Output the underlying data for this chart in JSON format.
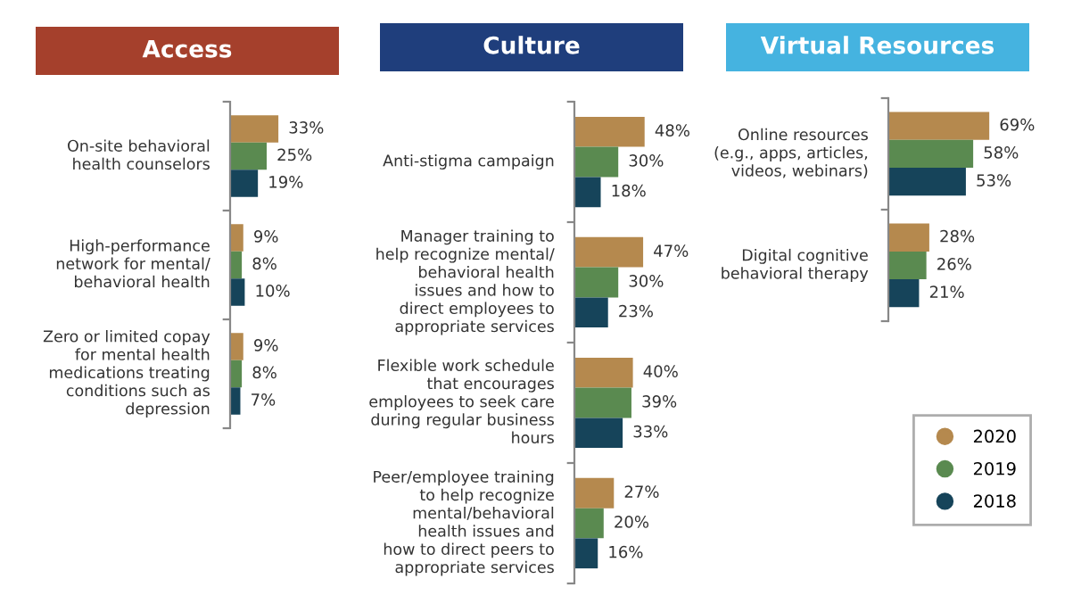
{
  "chart_data": [
    {
      "type": "bar",
      "orientation": "horizontal",
      "title": "Access",
      "categories": [
        "On-site behavioral\nhealth counselors",
        "High-performance\nnetwork for mental/\nbehavioral health",
        "Zero or limited copay\nfor mental health\nmedications treating\nconditions such as\ndepression"
      ],
      "series": [
        {
          "color": "#b5894e",
          "values": [
            33,
            9,
            9
          ],
          "value_labels": [
            "33%",
            "9%",
            "9%"
          ]
        },
        {
          "color": "#5a8a50",
          "values": [
            25,
            8,
            8
          ],
          "value_labels": [
            "25%",
            "8%",
            "8%"
          ]
        },
        {
          "color": "#16445a",
          "values": [
            19,
            10,
            7
          ],
          "value_labels": [
            "19%",
            "10%",
            "7%"
          ]
        }
      ]
    },
    {
      "type": "bar",
      "orientation": "horizontal",
      "title": "Culture",
      "categories": [
        "Anti-stigma campaign",
        "Manager training to\nhelp recognize mental/\nbehavioral health\nissues and how to\ndirect employees to\nappropriate services",
        "Flexible work schedule\nthat encourages\nemployees to seek care\nduring regular business\nhours",
        "Peer/employee training\nto help recognize\nmental/behavioral\nhealth issues and\nhow to direct peers to\nappropriate services"
      ],
      "series": [
        {
          "color": "#b5894e",
          "values": [
            48,
            47,
            40,
            27
          ],
          "value_labels": [
            "48%",
            "47%",
            "40%",
            "27%"
          ]
        },
        {
          "color": "#5a8a50",
          "values": [
            30,
            30,
            39,
            20
          ],
          "value_labels": [
            "30%",
            "30%",
            "39%",
            "20%"
          ]
        },
        {
          "color": "#16445a",
          "values": [
            18,
            23,
            33,
            16
          ],
          "value_labels": [
            "18%",
            "23%",
            "33%",
            "16%"
          ]
        }
      ]
    },
    {
      "type": "bar",
      "orientation": "horizontal",
      "title": "Virtual Resources",
      "legend": "bottom",
      "categories": [
        "Online resources\n(e.g., apps, articles,\nvideos, webinars)",
        "Digital cognitive\nbehavioral therapy"
      ],
      "series": [
        {
          "name": "2020",
          "color": "#b5894e",
          "values": [
            69,
            28
          ],
          "value_labels": [
            "69%",
            "28%"
          ]
        },
        {
          "name": "2019",
          "color": "#5a8a50",
          "values": [
            58,
            26
          ],
          "value_labels": [
            "58%",
            "26%"
          ]
        },
        {
          "name": "2018",
          "color": "#16445a",
          "values": [
            53,
            21
          ],
          "value_labels": [
            "53%",
            "21%"
          ]
        }
      ]
    }
  ]
}
